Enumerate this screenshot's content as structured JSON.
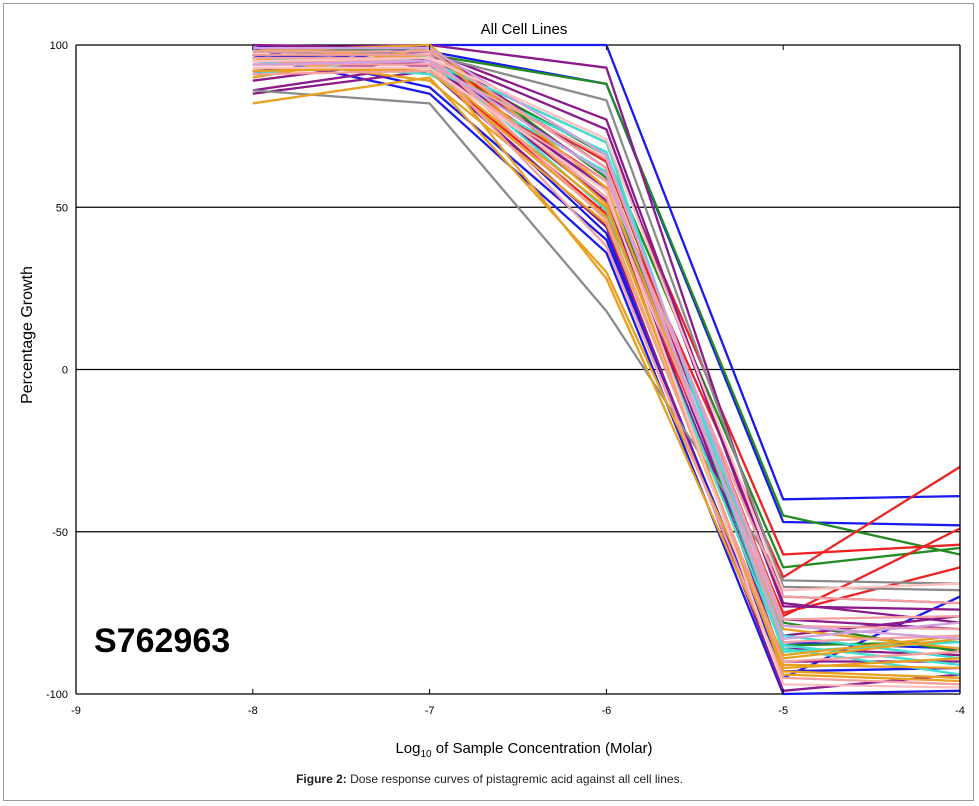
{
  "chart_data": {
    "type": "line",
    "title": "All Cell Lines",
    "xlabel": "Log10 of Sample Concentration (Molar)",
    "xlabel_parts": {
      "base": "Log",
      "sub": "10",
      "rest": " of Sample Concentration (Molar)"
    },
    "ylabel": "Percentage Growth",
    "x": [
      -8,
      -7,
      -6,
      -5,
      -4
    ],
    "xlim": [
      -9,
      -4
    ],
    "ylim": [
      -100,
      100
    ],
    "xticks": [
      "-9",
      "-8",
      "-7",
      "-6",
      "-5",
      "-4"
    ],
    "yticks": [
      "100",
      "50",
      "0",
      "-50",
      "-100"
    ],
    "grid": "horizontal",
    "annotation": "S762963",
    "series": [
      {
        "color": "#1a1aee",
        "values": [
          null,
          100,
          100,
          -40,
          -39
        ]
      },
      {
        "color": "#1a1aee",
        "values": [
          null,
          98,
          88,
          -47,
          -48
        ]
      },
      {
        "color": "#1a1aee",
        "values": [
          null,
          85,
          36,
          -100,
          -99
        ]
      },
      {
        "color": "#1a1aee",
        "values": [
          null,
          93,
          42,
          -95,
          -70
        ]
      },
      {
        "color": "#1a1aee",
        "values": [
          null,
          87,
          40,
          -93,
          -92
        ]
      },
      {
        "color": "#1a1aee",
        "values": [
          null,
          96,
          55,
          -84,
          -86
        ]
      },
      {
        "color": "#228b22",
        "values": [
          null,
          97,
          88,
          -45,
          -57
        ]
      },
      {
        "color": "#228b22",
        "values": [
          null,
          96,
          66,
          -61,
          -55
        ]
      },
      {
        "color": "#228b22",
        "values": [
          null,
          99,
          59,
          -85,
          -84
        ]
      },
      {
        "color": "#228b22",
        "values": [
          null,
          95,
          64,
          -78,
          -87
        ]
      },
      {
        "color": "#ee2222",
        "values": [
          null,
          95,
          70,
          -57,
          -54
        ]
      },
      {
        "color": "#ee2222",
        "values": [
          null,
          94,
          58,
          -64,
          -30
        ]
      },
      {
        "color": "#ee2222",
        "values": [
          null,
          96,
          64,
          -76,
          -49
        ]
      },
      {
        "color": "#ee2222",
        "values": [
          null,
          93,
          48,
          -75,
          -61
        ]
      },
      {
        "color": "#8b1a8b",
        "values": [
          null,
          100,
          93,
          -70,
          -72
        ]
      },
      {
        "color": "#8b1a8b",
        "values": [
          null,
          98,
          77,
          -72,
          -78
        ]
      },
      {
        "color": "#8b1a8b",
        "values": [
          null,
          96,
          60,
          -77,
          -80
        ]
      },
      {
        "color": "#8b1a8b",
        "values": [
          null,
          94,
          56,
          -82,
          -76
        ]
      },
      {
        "color": "#8b1a8b",
        "values": [
          null,
          92,
          44,
          -99,
          -94
        ]
      },
      {
        "color": "#8b1a8b",
        "values": [
          null,
          97,
          74,
          -73,
          -74
        ]
      },
      {
        "color": "#8b1a8b",
        "values": [
          null,
          95,
          52,
          -86,
          -88
        ]
      },
      {
        "color": "#8b1a8b",
        "values": [
          null,
          99,
          62,
          -90,
          -90
        ]
      },
      {
        "color": "#8b8b8b",
        "values": [
          null,
          82,
          18,
          -65,
          -66
        ]
      },
      {
        "color": "#8b8b8b",
        "values": [
          null,
          97,
          83,
          -67,
          -68
        ]
      },
      {
        "color": "#40e0d0",
        "values": [
          null,
          93,
          67,
          -82,
          -89
        ]
      },
      {
        "color": "#40e0d0",
        "values": [
          null,
          91,
          61,
          -85,
          -91
        ]
      },
      {
        "color": "#40e0d0",
        "values": [
          null,
          95,
          70,
          -87,
          -84
        ]
      },
      {
        "color": "#40e0d0",
        "values": [
          null,
          97,
          49,
          -86,
          -94
        ]
      },
      {
        "color": "#e8a020",
        "values": [
          null,
          90,
          30,
          -88,
          -82
        ]
      },
      {
        "color": "#e8a020",
        "values": [
          null,
          93,
          50,
          -91,
          -92
        ]
      },
      {
        "color": "#e8a020",
        "values": [
          null,
          96,
          28,
          -94,
          -96
        ]
      },
      {
        "color": "#e8a020",
        "values": [
          null,
          89,
          45,
          -89,
          -83
        ]
      },
      {
        "color": "#e8a020",
        "values": [
          null,
          99,
          51,
          -93,
          -95
        ]
      },
      {
        "color": "#e8a020",
        "values": [
          null,
          100,
          56,
          -80,
          -86
        ]
      },
      {
        "color": "#e8a020",
        "values": [
          null,
          92,
          47,
          -92,
          -89
        ]
      },
      {
        "color": "#f4a0a0",
        "values": [
          null,
          94,
          65,
          -77,
          -76
        ]
      },
      {
        "color": "#f4a0a0",
        "values": [
          null,
          96,
          53,
          -79,
          -80
        ]
      },
      {
        "color": "#f4a0a0",
        "values": [
          null,
          98,
          62,
          -84,
          -82
        ]
      },
      {
        "color": "#f4a0a0",
        "values": [
          null,
          92,
          58,
          -70,
          -72
        ]
      },
      {
        "color": "#f4a0a0",
        "values": [
          null,
          97,
          46,
          -90,
          -87
        ]
      },
      {
        "color": "#f4a0a0",
        "values": [
          null,
          95,
          38,
          -95,
          -97
        ]
      },
      {
        "color": "#d0a0e0",
        "values": [
          null,
          99,
          66,
          -79,
          -83
        ]
      },
      {
        "color": "#d0a0e0",
        "values": [
          null,
          95,
          60,
          -83,
          -78
        ]
      },
      {
        "color": "#ffc0c0",
        "values": [
          null,
          96,
          71,
          -68,
          -66
        ]
      },
      {
        "color": "#ffc0c0",
        "values": [
          null,
          93,
          55,
          -97,
          -98
        ]
      }
    ],
    "series_start": [
      [
        91,
        96,
        97,
        100,
        99,
        95,
        97,
        96,
        98,
        95,
        95,
        94,
        96,
        92,
        99,
        98,
        89,
        86,
        85,
        97,
        92,
        100,
        86,
        98,
        93,
        95,
        96,
        91,
        82,
        92,
        99,
        96,
        90,
        98,
        93,
        94,
        96,
        98,
        91,
        97,
        95,
        99,
        94,
        95,
        93
      ]
    ]
  },
  "caption": {
    "label": "Figure 2:",
    "text": " Dose response curves of pistagremic acid against all cell lines."
  }
}
